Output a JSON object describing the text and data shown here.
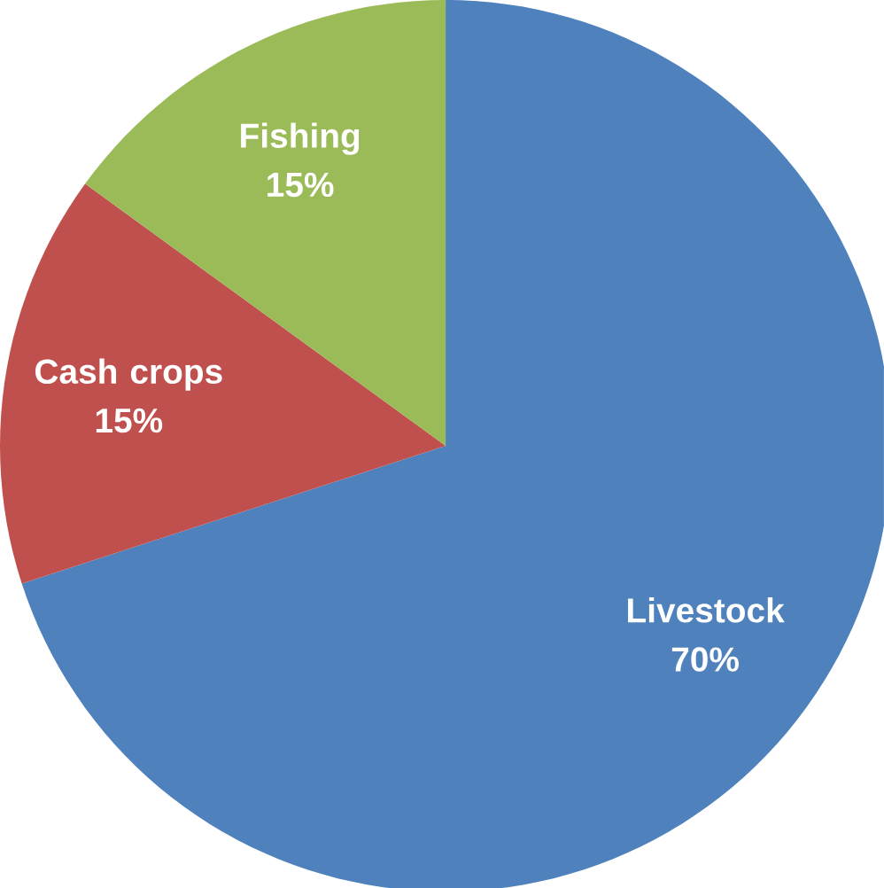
{
  "chart_data": {
    "type": "pie",
    "categories": [
      "Livestock",
      "Cash crops",
      "Fishing"
    ],
    "values": [
      70,
      15,
      15
    ],
    "colors": [
      "#4f81bd",
      "#c0504d",
      "#9bbb59"
    ],
    "value_labels": [
      "70%",
      "15%",
      "15%"
    ]
  }
}
